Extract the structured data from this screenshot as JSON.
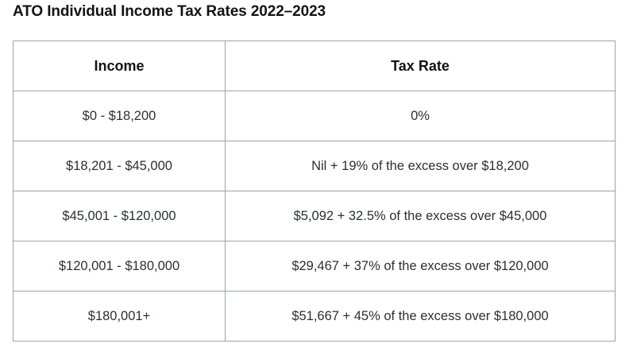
{
  "title": "ATO Individual Income Tax Rates 2022–2023",
  "table": {
    "headers": [
      "Income",
      "Tax Rate"
    ],
    "rows": [
      [
        "$0 - $18,200",
        "0%"
      ],
      [
        "$18,201 - $45,000",
        "Nil + 19% of the excess over $18,200"
      ],
      [
        "$45,001 - $120,000",
        "$5,092 + 32.5% of the excess over $45,000"
      ],
      [
        "$120,001 - $180,000",
        "$29,467 + 37% of the excess over $120,000"
      ],
      [
        "$180,001+",
        "$51,667 + 45% of the excess over $180,000"
      ]
    ]
  }
}
